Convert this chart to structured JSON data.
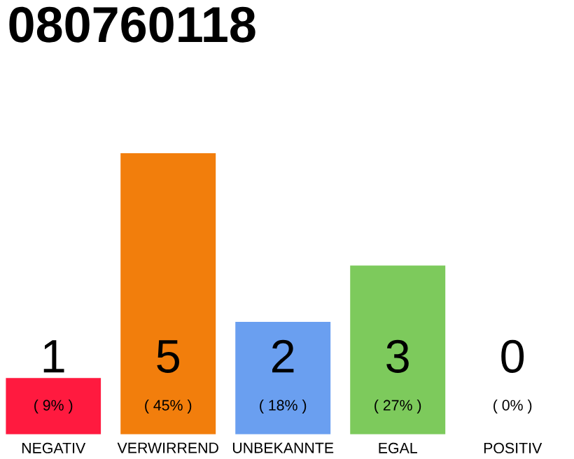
{
  "chart_data": {
    "type": "bar",
    "title": "080760118",
    "categories": [
      "NEGATIV",
      "VERWIRREND",
      "UNBEKANNTE",
      "EGAL",
      "POSITIV"
    ],
    "values": [
      1,
      5,
      2,
      3,
      0
    ],
    "colors": [
      "#ff1a3f",
      "#f27e0c",
      "#6a9ff0",
      "#7dca5c",
      "#eeeeee"
    ],
    "ylim": [
      0,
      5
    ],
    "data_labels": true,
    "tick_labels": "x",
    "annotations": [
      "( 9% )",
      "( 45% )",
      "( 18% )",
      "( 27% )",
      "( 0% )"
    ]
  }
}
